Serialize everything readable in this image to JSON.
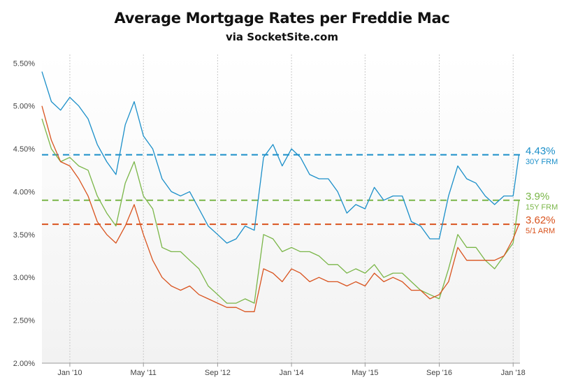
{
  "title": "Average Mortgage Rates per Freddie Mac",
  "subtitle": "via SocketSite.com",
  "chart_data": {
    "type": "line",
    "title": "Average Mortgage Rates per Freddie Mac",
    "subtitle": "via SocketSite.com",
    "xlabel": "",
    "ylabel": "",
    "ylim": [
      2.0,
      5.6
    ],
    "xlim": [
      "2009-07-01",
      "2018-02-15"
    ],
    "x_ticks": [
      {
        "date": "2010-01-01",
        "label": "Jan '10"
      },
      {
        "date": "2011-05-01",
        "label": "May '11"
      },
      {
        "date": "2012-09-01",
        "label": "Sep '12"
      },
      {
        "date": "2014-01-01",
        "label": "Jan '14"
      },
      {
        "date": "2015-05-01",
        "label": "May '15"
      },
      {
        "date": "2016-09-01",
        "label": "Sep '16"
      },
      {
        "date": "2018-01-01",
        "label": "Jan '18"
      }
    ],
    "y_ticks": [
      {
        "value": 2.0,
        "label": "2.00%"
      },
      {
        "value": 2.5,
        "label": "2.50%"
      },
      {
        "value": 3.0,
        "label": "3.00%"
      },
      {
        "value": 3.5,
        "label": "3.50%"
      },
      {
        "value": 4.0,
        "label": "4.00%"
      },
      {
        "value": 4.5,
        "label": "4.50%"
      },
      {
        "value": 5.0,
        "label": "5.00%"
      },
      {
        "value": 5.5,
        "label": "5.50%"
      }
    ],
    "grid": {
      "vertical": true,
      "horizontal": false
    },
    "series": [
      {
        "name": "30Y FRM",
        "color": "#1b8fc9",
        "latest_label": "4.43%",
        "latest_value": 4.43,
        "x": [
          "2009-07-01",
          "2009-09-01",
          "2009-11-01",
          "2010-01-01",
          "2010-03-01",
          "2010-05-01",
          "2010-07-01",
          "2010-09-01",
          "2010-11-01",
          "2011-01-01",
          "2011-03-01",
          "2011-05-01",
          "2011-07-01",
          "2011-09-01",
          "2011-11-01",
          "2012-01-01",
          "2012-03-01",
          "2012-05-01",
          "2012-07-01",
          "2012-09-01",
          "2012-11-01",
          "2013-01-01",
          "2013-03-01",
          "2013-05-01",
          "2013-07-01",
          "2013-09-01",
          "2013-11-01",
          "2014-01-01",
          "2014-03-01",
          "2014-05-01",
          "2014-07-01",
          "2014-09-01",
          "2014-11-01",
          "2015-01-01",
          "2015-03-01",
          "2015-05-01",
          "2015-07-01",
          "2015-09-01",
          "2015-11-01",
          "2016-01-01",
          "2016-03-01",
          "2016-05-01",
          "2016-07-01",
          "2016-09-01",
          "2016-11-01",
          "2017-01-01",
          "2017-03-01",
          "2017-05-01",
          "2017-07-01",
          "2017-09-01",
          "2017-11-01",
          "2018-01-01",
          "2018-02-08"
        ],
        "values": [
          5.4,
          5.05,
          4.95,
          5.1,
          5.0,
          4.85,
          4.55,
          4.35,
          4.2,
          4.78,
          5.05,
          4.65,
          4.5,
          4.15,
          4.0,
          3.95,
          4.0,
          3.8,
          3.6,
          3.5,
          3.4,
          3.45,
          3.6,
          3.55,
          4.4,
          4.55,
          4.3,
          4.5,
          4.4,
          4.2,
          4.15,
          4.15,
          4.0,
          3.75,
          3.85,
          3.8,
          4.05,
          3.9,
          3.95,
          3.95,
          3.65,
          3.6,
          3.45,
          3.45,
          3.95,
          4.3,
          4.15,
          4.1,
          3.95,
          3.85,
          3.95,
          3.95,
          4.43
        ]
      },
      {
        "name": "15Y FRM",
        "color": "#7ab648",
        "latest_label": "3.9%",
        "latest_value": 3.9,
        "x": [
          "2009-07-01",
          "2009-09-01",
          "2009-11-01",
          "2010-01-01",
          "2010-03-01",
          "2010-05-01",
          "2010-07-01",
          "2010-09-01",
          "2010-11-01",
          "2011-01-01",
          "2011-03-01",
          "2011-05-01",
          "2011-07-01",
          "2011-09-01",
          "2011-11-01",
          "2012-01-01",
          "2012-03-01",
          "2012-05-01",
          "2012-07-01",
          "2012-09-01",
          "2012-11-01",
          "2013-01-01",
          "2013-03-01",
          "2013-05-01",
          "2013-07-01",
          "2013-09-01",
          "2013-11-01",
          "2014-01-01",
          "2014-03-01",
          "2014-05-01",
          "2014-07-01",
          "2014-09-01",
          "2014-11-01",
          "2015-01-01",
          "2015-03-01",
          "2015-05-01",
          "2015-07-01",
          "2015-09-01",
          "2015-11-01",
          "2016-01-01",
          "2016-03-01",
          "2016-05-01",
          "2016-07-01",
          "2016-09-01",
          "2016-11-01",
          "2017-01-01",
          "2017-03-01",
          "2017-05-01",
          "2017-07-01",
          "2017-09-01",
          "2017-11-01",
          "2018-01-01",
          "2018-02-08"
        ],
        "values": [
          4.85,
          4.5,
          4.35,
          4.4,
          4.3,
          4.25,
          3.95,
          3.75,
          3.6,
          4.1,
          4.35,
          3.95,
          3.8,
          3.35,
          3.3,
          3.3,
          3.2,
          3.1,
          2.9,
          2.8,
          2.7,
          2.7,
          2.75,
          2.7,
          3.5,
          3.45,
          3.3,
          3.35,
          3.3,
          3.3,
          3.25,
          3.15,
          3.15,
          3.05,
          3.1,
          3.05,
          3.15,
          3.0,
          3.05,
          3.05,
          2.95,
          2.85,
          2.8,
          2.75,
          3.1,
          3.5,
          3.35,
          3.35,
          3.2,
          3.1,
          3.25,
          3.4,
          3.9
        ]
      },
      {
        "name": "5/1 ARM",
        "color": "#d9531e",
        "latest_label": "3.62%",
        "latest_value": 3.62,
        "x": [
          "2009-07-01",
          "2009-09-01",
          "2009-11-01",
          "2010-01-01",
          "2010-03-01",
          "2010-05-01",
          "2010-07-01",
          "2010-09-01",
          "2010-11-01",
          "2011-01-01",
          "2011-03-01",
          "2011-05-01",
          "2011-07-01",
          "2011-09-01",
          "2011-11-01",
          "2012-01-01",
          "2012-03-01",
          "2012-05-01",
          "2012-07-01",
          "2012-09-01",
          "2012-11-01",
          "2013-01-01",
          "2013-03-01",
          "2013-05-01",
          "2013-07-01",
          "2013-09-01",
          "2013-11-01",
          "2014-01-01",
          "2014-03-01",
          "2014-05-01",
          "2014-07-01",
          "2014-09-01",
          "2014-11-01",
          "2015-01-01",
          "2015-03-01",
          "2015-05-01",
          "2015-07-01",
          "2015-09-01",
          "2015-11-01",
          "2016-01-01",
          "2016-03-01",
          "2016-05-01",
          "2016-07-01",
          "2016-09-01",
          "2016-11-01",
          "2017-01-01",
          "2017-03-01",
          "2017-05-01",
          "2017-07-01",
          "2017-09-01",
          "2017-11-01",
          "2018-01-01",
          "2018-02-08"
        ],
        "values": [
          5.0,
          4.6,
          4.35,
          4.3,
          4.15,
          3.95,
          3.65,
          3.5,
          3.4,
          3.6,
          3.85,
          3.5,
          3.2,
          3.0,
          2.9,
          2.85,
          2.9,
          2.8,
          2.75,
          2.7,
          2.65,
          2.65,
          2.6,
          2.6,
          3.1,
          3.05,
          2.95,
          3.1,
          3.05,
          2.95,
          3.0,
          2.95,
          2.95,
          2.9,
          2.95,
          2.9,
          3.05,
          2.95,
          3.0,
          2.95,
          2.85,
          2.85,
          2.75,
          2.8,
          2.95,
          3.35,
          3.2,
          3.2,
          3.2,
          3.2,
          3.25,
          3.45,
          3.62
        ]
      }
    ]
  }
}
